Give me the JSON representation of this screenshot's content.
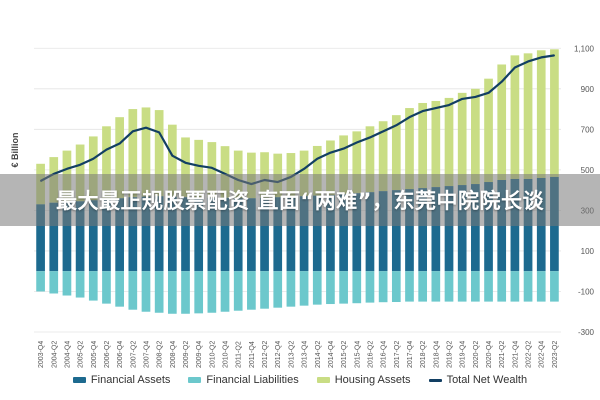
{
  "overlay": {
    "headline": "最大最正规股票配资 直面“两难”，东莞中院院长谈"
  },
  "chart_data": {
    "type": "bar",
    "y_axis_title": "€ Billion",
    "ylim": [
      -300,
      1200
    ],
    "yticks": [
      1100,
      900,
      700,
      500,
      300,
      100,
      -100,
      -300
    ],
    "gridlines": true,
    "legend_position": "bottom",
    "categories": [
      "2003-Q4",
      "2004-Q2",
      "2004-Q4",
      "2005-Q2",
      "2005-Q4",
      "2006-Q2",
      "2006-Q4",
      "2007-Q2",
      "2007-Q4",
      "2008-Q2",
      "2008-Q4",
      "2009-Q2",
      "2009-Q4",
      "2010-Q2",
      "2010-Q4",
      "2011-Q2",
      "2011-Q4",
      "2012-Q2",
      "2012-Q4",
      "2013-Q2",
      "2013-Q4",
      "2014-Q2",
      "2014-Q4",
      "2015-Q2",
      "2015-Q4",
      "2016-Q2",
      "2016-Q4",
      "2017-Q2",
      "2017-Q4",
      "2018-Q2",
      "2018-Q4",
      "2019-Q2",
      "2019-Q4",
      "2020-Q2",
      "2020-Q4",
      "2021-Q2",
      "2021-Q4",
      "2022-Q2",
      "2022-Q4",
      "2023-Q2"
    ],
    "series": [
      {
        "name": "Financial Assets",
        "color": "#1d6a8f",
        "values": [
          330,
          338,
          340,
          345,
          350,
          355,
          360,
          365,
          368,
          370,
          368,
          365,
          363,
          362,
          362,
          360,
          360,
          362,
          365,
          368,
          370,
          373,
          375,
          380,
          385,
          390,
          395,
          400,
          405,
          410,
          415,
          420,
          425,
          430,
          440,
          450,
          455,
          455,
          460,
          465
        ]
      },
      {
        "name": "Financial Liabilities",
        "color": "#6cc8cc",
        "values": [
          -100,
          -110,
          -120,
          -130,
          -145,
          -160,
          -175,
          -190,
          -200,
          -205,
          -210,
          -210,
          -208,
          -205,
          -200,
          -195,
          -190,
          -185,
          -180,
          -175,
          -170,
          -165,
          -162,
          -160,
          -158,
          -155,
          -153,
          -152,
          -150,
          -150,
          -150,
          -150,
          -150,
          -150,
          -150,
          -150,
          -150,
          -150,
          -150,
          -150
        ]
      },
      {
        "name": "Housing Assets",
        "color": "#c9dd84",
        "values": [
          200,
          225,
          255,
          280,
          315,
          360,
          400,
          435,
          440,
          425,
          355,
          295,
          285,
          275,
          255,
          235,
          225,
          225,
          215,
          215,
          225,
          245,
          270,
          290,
          305,
          325,
          345,
          370,
          400,
          420,
          425,
          435,
          455,
          470,
          510,
          570,
          610,
          620,
          630,
          630
        ]
      },
      {
        "name": "Total Net Wealth",
        "color": "#123f63",
        "type": "line",
        "values": [
          445,
          480,
          505,
          525,
          555,
          600,
          630,
          690,
          708,
          685,
          570,
          535,
          520,
          510,
          480,
          450,
          430,
          450,
          440,
          465,
          505,
          555,
          585,
          605,
          635,
          660,
          690,
          720,
          760,
          790,
          805,
          820,
          850,
          860,
          880,
          935,
          1005,
          1035,
          1055,
          1065
        ]
      }
    ]
  }
}
